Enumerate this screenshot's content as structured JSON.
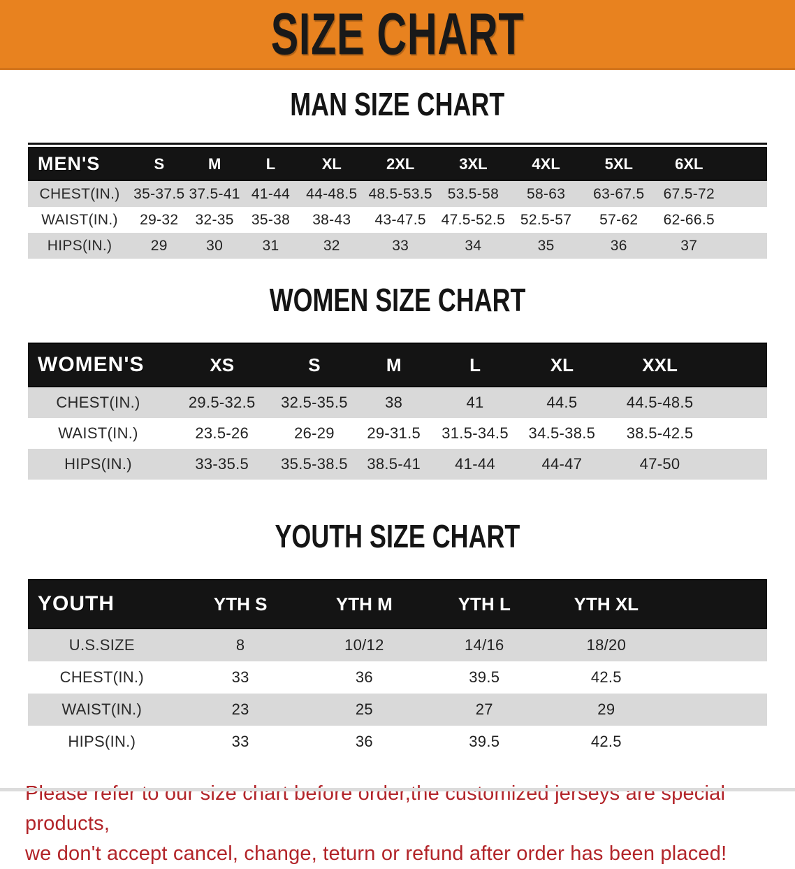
{
  "banner": {
    "title": "SIZE CHART",
    "background_color": "#E8821F",
    "text_color": "#191919"
  },
  "chart_data": [
    {
      "type": "table",
      "title": "MAN SIZE CHART",
      "header_label": "MEN'S",
      "columns": [
        "S",
        "M",
        "L",
        "XL",
        "2XL",
        "3XL",
        "4XL",
        "5XL",
        "6XL"
      ],
      "rows": [
        {
          "label": "CHEST(IN.)",
          "values": [
            "35-37.5",
            "37.5-41",
            "41-44",
            "44-48.5",
            "48.5-53.5",
            "53.5-58",
            "58-63",
            "63-67.5",
            "67.5-72"
          ]
        },
        {
          "label": "WAIST(IN.)",
          "values": [
            "29-32",
            "32-35",
            "35-38",
            "38-43",
            "43-47.5",
            "47.5-52.5",
            "52.5-57",
            "57-62",
            "62-66.5"
          ]
        },
        {
          "label": "HIPS(IN.)",
          "values": [
            "29",
            "30",
            "31",
            "32",
            "33",
            "34",
            "35",
            "36",
            "37"
          ]
        }
      ]
    },
    {
      "type": "table",
      "title": "WOMEN SIZE CHART",
      "header_label": "WOMEN'S",
      "columns": [
        "XS",
        "S",
        "M",
        "L",
        "XL",
        "XXL"
      ],
      "rows": [
        {
          "label": "CHEST(IN.)",
          "values": [
            "29.5-32.5",
            "32.5-35.5",
            "38",
            "41",
            "44.5",
            "44.5-48.5"
          ]
        },
        {
          "label": "WAIST(IN.)",
          "values": [
            "23.5-26",
            "26-29",
            "29-31.5",
            "31.5-34.5",
            "34.5-38.5",
            "38.5-42.5"
          ]
        },
        {
          "label": "HIPS(IN.)",
          "values": [
            "33-35.5",
            "35.5-38.5",
            "38.5-41",
            "41-44",
            "44-47",
            "47-50"
          ]
        }
      ]
    },
    {
      "type": "table",
      "title": "YOUTH SIZE CHART",
      "header_label": "YOUTH",
      "columns": [
        "YTH S",
        "YTH M",
        "YTH L",
        "YTH XL"
      ],
      "rows": [
        {
          "label": "U.S.SIZE",
          "values": [
            "8",
            "10/12",
            "14/16",
            "18/20"
          ]
        },
        {
          "label": "CHEST(IN.)",
          "values": [
            "33",
            "36",
            "39.5",
            "42.5"
          ]
        },
        {
          "label": "WAIST(IN.)",
          "values": [
            "23",
            "25",
            "27",
            "29"
          ]
        },
        {
          "label": "HIPS(IN.)",
          "values": [
            "33",
            "36",
            "39.5",
            "42.5"
          ]
        }
      ]
    }
  ],
  "footer_note": {
    "line1": "Please refer to our size chart before order,the customized jerseys are special products,",
    "line2": "we don't accept cancel, change, teturn or refund after order has been placed!",
    "text_color": "#B22429"
  },
  "colors": {
    "banner_orange": "#E8821F",
    "table_header_black": "#141414",
    "row_stripe_gray": "#D9D9D9",
    "warning_red": "#B22429"
  }
}
